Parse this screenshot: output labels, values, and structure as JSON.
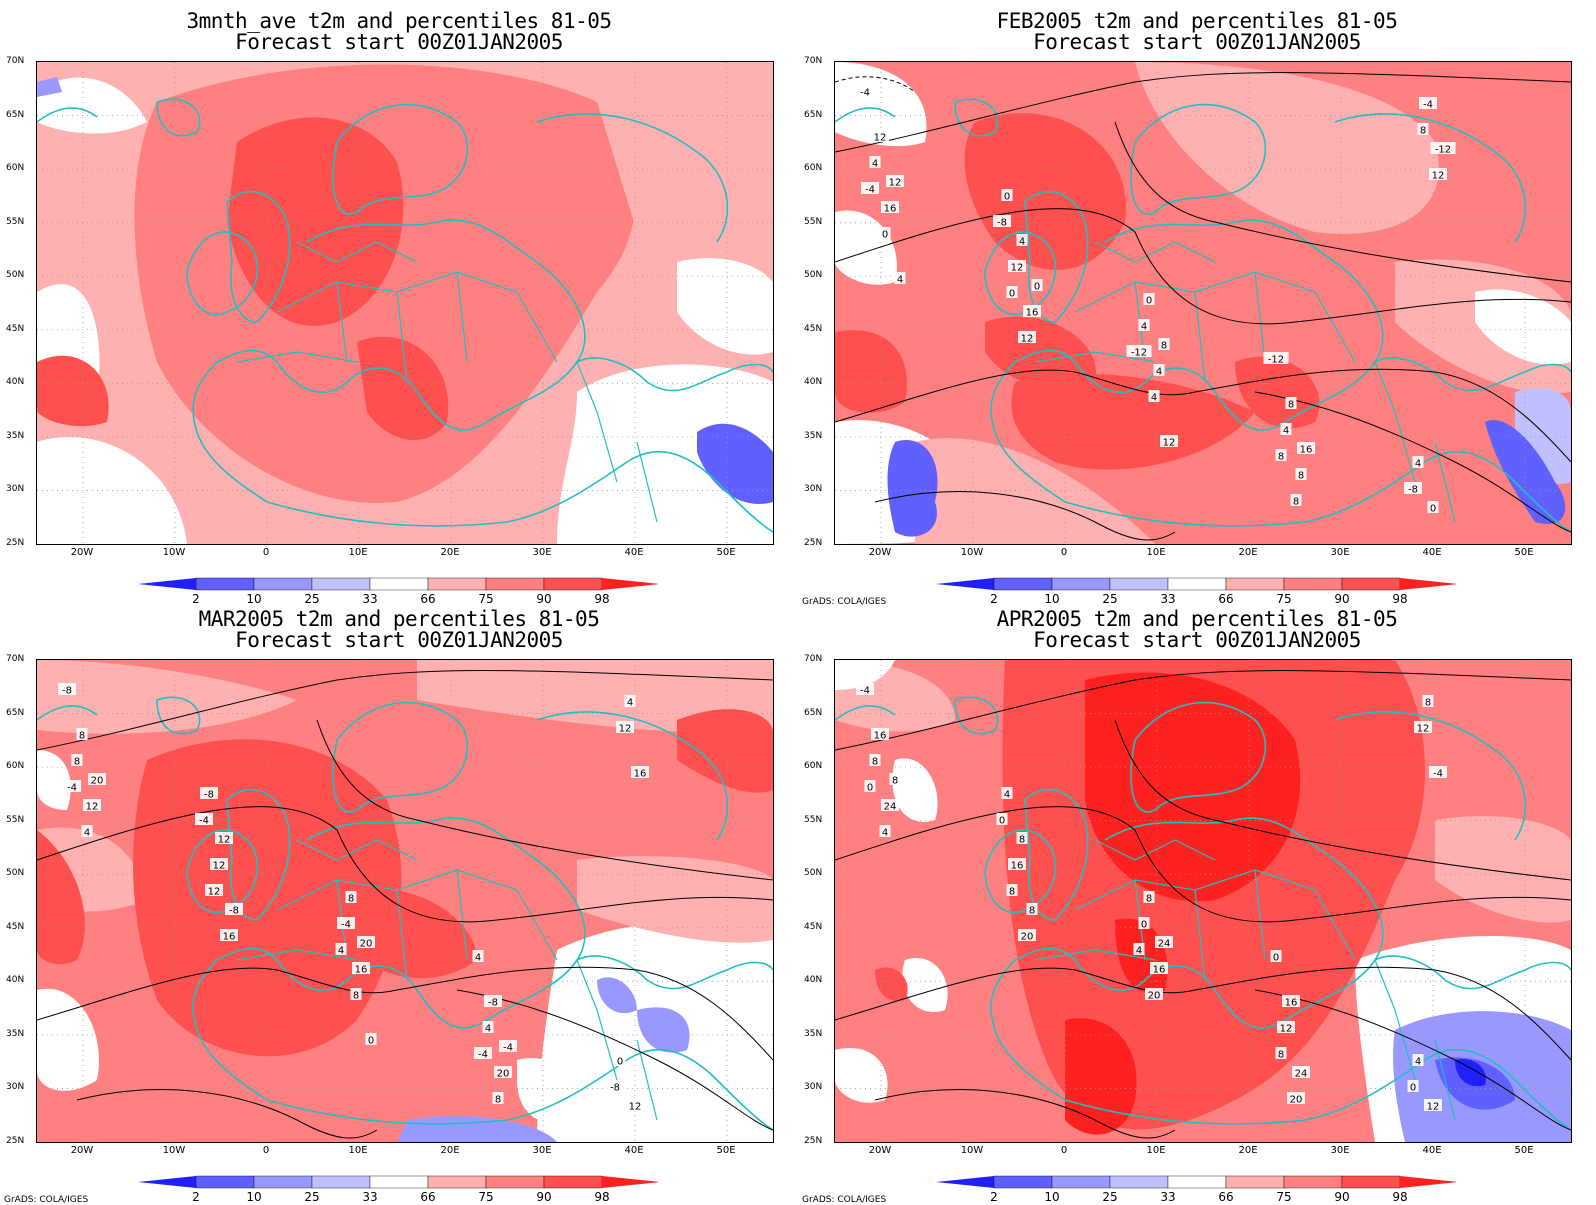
{
  "panels": [
    {
      "title1": "3mnth_ave t2m and percentiles 81-05",
      "title2": "Forecast start 00Z01JAN2005"
    },
    {
      "title1": "FEB2005 t2m and percentiles 81-05",
      "title2": "Forecast start 00Z01JAN2005"
    },
    {
      "title1": "MAR2005 t2m and percentiles 81-05",
      "title2": "Forecast start 00Z01JAN2005"
    },
    {
      "title1": "APR2005 t2m and percentiles 81-05",
      "title2": "Forecast start 00Z01JAN2005"
    }
  ],
  "latitude_labels": [
    "70N",
    "65N",
    "60N",
    "55N",
    "50N",
    "45N",
    "40N",
    "35N",
    "30N",
    "25N"
  ],
  "longitude_labels": [
    "20W",
    "10W",
    "0",
    "10E",
    "20E",
    "30E",
    "40E",
    "50E"
  ],
  "colorbar": {
    "labels": [
      "2",
      "10",
      "25",
      "33",
      "66",
      "75",
      "90",
      "98"
    ],
    "colors": [
      "#2020ff",
      "#6060ff",
      "#9898ff",
      "#c0c0ff",
      "#ffffff",
      "#ffb0b0",
      "#ff8080",
      "#ff5050",
      "#ff2020"
    ]
  },
  "credit": "GrADS: COLA/IGES",
  "contour_labels": {
    "feb": [
      "-4",
      "-8",
      "-12",
      "-12",
      "-8",
      "-4",
      "0",
      "4",
      "8",
      "4",
      "4",
      "0",
      "0",
      "4",
      "8",
      "12",
      "12",
      "4",
      "8",
      "-4",
      "0",
      "4",
      "4",
      "8",
      "0",
      "16",
      "12",
      "8",
      "8",
      "12",
      "12",
      "16",
      "12",
      "16",
      "-12",
      "4",
      "0"
    ],
    "mar": [
      "-8",
      "-4",
      "4",
      "4",
      "-8",
      "-4",
      "-8",
      "-4",
      "-4",
      "0",
      "8",
      "12",
      "8",
      "4",
      "12",
      "8",
      "12",
      "8",
      "-8",
      "4",
      "4",
      "12",
      "16",
      "8",
      "12",
      "12",
      "16",
      "20",
      "20",
      "16",
      "20",
      "-8",
      "0",
      "-4"
    ],
    "apr": [
      "-4",
      "0",
      "4",
      "0",
      "0",
      "0",
      "4",
      "0",
      "8",
      "4",
      "8",
      "8",
      "8",
      "12",
      "12",
      "16",
      "16",
      "20",
      "16",
      "8",
      "4",
      "8",
      "16",
      "20",
      "12",
      "24",
      "20",
      "24",
      "24",
      "-4",
      "8",
      "8"
    ]
  }
}
